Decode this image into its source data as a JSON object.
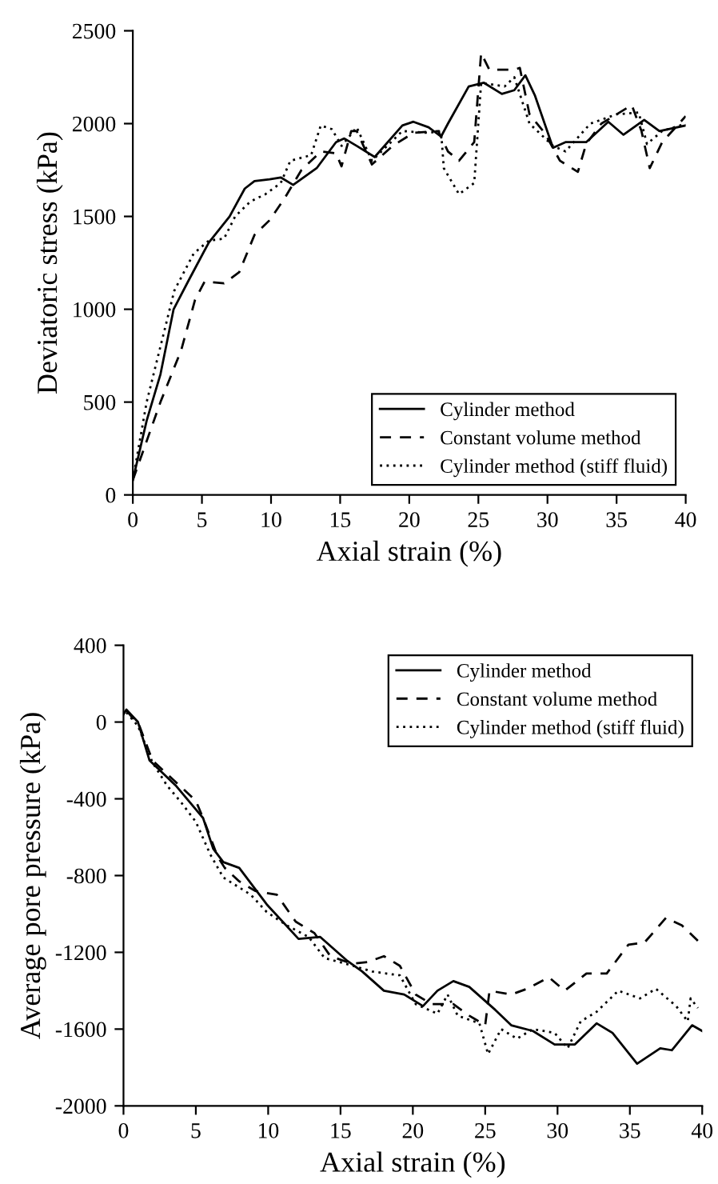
{
  "chart_data": [
    {
      "type": "line",
      "xlabel": "Axial strain (%)",
      "ylabel": "Deviatoric stress (kPa)",
      "xlim": [
        0,
        40
      ],
      "ylim": [
        0,
        2500
      ],
      "xticks": [
        0,
        5,
        10,
        15,
        20,
        25,
        30,
        35,
        40
      ],
      "yticks": [
        0,
        500,
        1000,
        1500,
        2000,
        2500
      ],
      "grid": false,
      "legend": "bottom right",
      "marker": "none",
      "series": [
        {
          "name": "Cylinder method",
          "color": "#000000",
          "line_style": "solid",
          "x": [
            0,
            1,
            2,
            2.95,
            4,
            5.5,
            7,
            8.1,
            8.8,
            9.9,
            10.7,
            11.6,
            13.3,
            14.7,
            15.3,
            16.2,
            17.5,
            19.5,
            20.3,
            21.4,
            22.3,
            22.8,
            24.3,
            25.4,
            26.7,
            27.6,
            28.4,
            29.1,
            30.4,
            31.3,
            32.8,
            34.4,
            35.5,
            37,
            38.1,
            40
          ],
          "values": [
            80,
            400,
            650,
            1000,
            1150,
            1360,
            1500,
            1650,
            1690,
            1700,
            1710,
            1670,
            1760,
            1900,
            1920,
            1880,
            1820,
            1990,
            2010,
            1980,
            1930,
            2000,
            2200,
            2220,
            2160,
            2180,
            2260,
            2150,
            1870,
            1900,
            1900,
            2010,
            1940,
            2020,
            1960,
            1990
          ]
        },
        {
          "name": "Constant volume method",
          "color": "#000000",
          "line_style": "dashed",
          "x": [
            0,
            2,
            3.5,
            4.5,
            5.2,
            6.6,
            7.7,
            8.8,
            9.9,
            11,
            12.2,
            13.6,
            14.7,
            15.1,
            15.8,
            16.2,
            17.3,
            18.8,
            20.3,
            22.1,
            22.8,
            23.6,
            24.7,
            25.2,
            25.8,
            27.6,
            28,
            28.7,
            29.8,
            30.9,
            32.2,
            32.8,
            33.9,
            36.1,
            36.8,
            37.4,
            38.3,
            40
          ],
          "values": [
            80,
            500,
            780,
            1050,
            1150,
            1140,
            1200,
            1400,
            1480,
            1600,
            1750,
            1850,
            1840,
            1770,
            1960,
            1960,
            1780,
            1880,
            1950,
            1960,
            1850,
            1800,
            1900,
            2380,
            2290,
            2290,
            2300,
            2050,
            1950,
            1800,
            1740,
            1890,
            2000,
            2100,
            1960,
            1760,
            1900,
            2040
          ]
        },
        {
          "name": "Cylinder method (stiff fluid)",
          "color": "#000000",
          "line_style": "dotted",
          "x": [
            0,
            1,
            2,
            3,
            4.4,
            5.5,
            6.6,
            7.4,
            8.5,
            9.6,
            10.7,
            11.4,
            12.9,
            13.6,
            14.4,
            15.1,
            16.2,
            17.3,
            19.5,
            21.4,
            22.3,
            22.5,
            23.6,
            24.7,
            25.2,
            26.9,
            27.6,
            28.7,
            30.4,
            31.3,
            33.1,
            35,
            36.6,
            37.2,
            38.3,
            40
          ],
          "values": [
            80,
            500,
            800,
            1100,
            1300,
            1370,
            1380,
            1500,
            1580,
            1620,
            1680,
            1800,
            1830,
            1990,
            1970,
            1880,
            1980,
            1800,
            1960,
            1950,
            1960,
            1760,
            1620,
            1680,
            2220,
            2200,
            2250,
            2000,
            1880,
            1850,
            2000,
            2050,
            2060,
            1890,
            1960,
            2000
          ]
        }
      ]
    },
    {
      "type": "line",
      "xlabel": "Axial strain (%)",
      "ylabel": "Average pore pressure (kPa)",
      "xlim": [
        0,
        40
      ],
      "ylim": [
        -2000,
        400
      ],
      "xticks": [
        0,
        5,
        10,
        15,
        20,
        25,
        30,
        35,
        40
      ],
      "yticks": [
        -2000,
        -1600,
        -1200,
        -800,
        -400,
        0,
        400
      ],
      "grid": false,
      "legend": "top right",
      "marker": "none",
      "series": [
        {
          "name": "Cylinder method",
          "color": "#000000",
          "line_style": "solid",
          "x": [
            0,
            0.2,
            1,
            1.8,
            3.6,
            5.5,
            6.2,
            6.9,
            8,
            9.9,
            12.1,
            13.6,
            15.4,
            16.5,
            18,
            19.4,
            20.7,
            21.7,
            22.8,
            23.9,
            25.7,
            26.8,
            28.3,
            29.8,
            31.2,
            32.7,
            33.8,
            35.5,
            37.1,
            37.9,
            39.3,
            40
          ],
          "values": [
            40,
            65,
            0,
            -200,
            -330,
            -500,
            -660,
            -730,
            -760,
            -950,
            -1130,
            -1120,
            -1240,
            -1300,
            -1400,
            -1420,
            -1480,
            -1400,
            -1350,
            -1380,
            -1500,
            -1580,
            -1610,
            -1680,
            -1680,
            -1570,
            -1620,
            -1780,
            -1700,
            -1710,
            -1580,
            -1610
          ]
        },
        {
          "name": "Constant volume method",
          "color": "#000000",
          "line_style": "dashed",
          "x": [
            0.2,
            1.1,
            2,
            3,
            5,
            5.5,
            6.5,
            7,
            8,
            9.1,
            10.6,
            11.9,
            13.2,
            14.3,
            15.8,
            16.9,
            18,
            19.1,
            20.2,
            21.3,
            22.8,
            23.9,
            25,
            25.3,
            26.8,
            27.9,
            29.4,
            30.5,
            32,
            33.4,
            34.9,
            36,
            37.5,
            38.6,
            39.7
          ],
          "values": [
            60,
            -20,
            -200,
            -270,
            -410,
            -500,
            -700,
            -760,
            -830,
            -880,
            -900,
            -1040,
            -1100,
            -1220,
            -1260,
            -1250,
            -1220,
            -1270,
            -1420,
            -1470,
            -1470,
            -1530,
            -1580,
            -1400,
            -1420,
            -1390,
            -1330,
            -1400,
            -1310,
            -1310,
            -1160,
            -1150,
            -1020,
            -1060,
            -1140
          ]
        },
        {
          "name": "Cylinder method (stiff fluid)",
          "color": "#000000",
          "line_style": "dotted",
          "x": [
            0.2,
            1,
            2,
            3,
            4,
            5,
            6,
            6.9,
            8.8,
            9.9,
            11.3,
            12.8,
            13.9,
            15.4,
            17.2,
            19.1,
            20.2,
            21.7,
            22.4,
            23.1,
            24.6,
            25.2,
            26.1,
            27.2,
            28.3,
            29.8,
            30.7,
            31.6,
            32.7,
            34.2,
            35.7,
            36.8,
            38.2,
            39,
            39.2,
            39.7
          ],
          "values": [
            50,
            -20,
            -210,
            -330,
            -420,
            -520,
            -690,
            -810,
            -900,
            -990,
            -1060,
            -1120,
            -1230,
            -1260,
            -1300,
            -1320,
            -1470,
            -1520,
            -1420,
            -1530,
            -1570,
            -1730,
            -1600,
            -1650,
            -1600,
            -1620,
            -1700,
            -1560,
            -1510,
            -1400,
            -1440,
            -1390,
            -1480,
            -1560,
            -1440,
            -1490
          ]
        }
      ]
    }
  ]
}
